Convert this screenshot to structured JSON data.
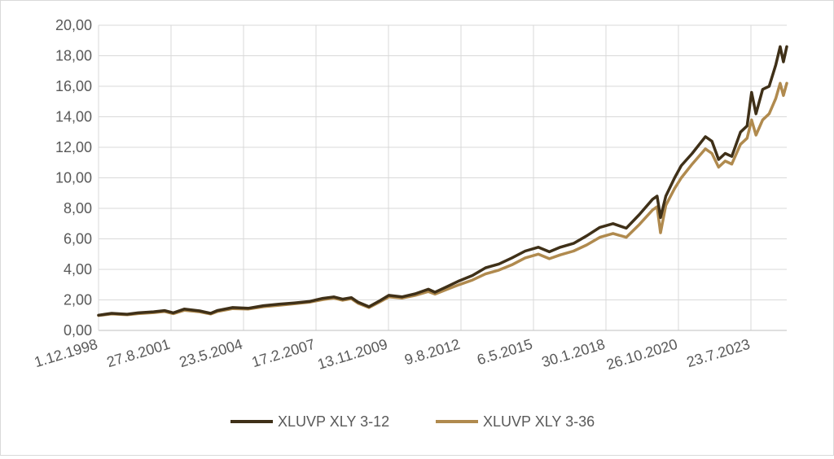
{
  "chart_data": {
    "type": "line",
    "title": "",
    "xlabel": "",
    "ylabel": "",
    "ylim": [
      0,
      20
    ],
    "y_ticks": [
      "0,00",
      "2,00",
      "4,00",
      "6,00",
      "8,00",
      "10,00",
      "12,00",
      "14,00",
      "16,00",
      "18,00",
      "20,00"
    ],
    "x_tick_labels": [
      "1.12.1998",
      "27.8.2001",
      "23.5.2004",
      "17.2.2007",
      "13.11.2009",
      "9.8.2012",
      "6.5.2015",
      "30.1.2018",
      "26.10.2020",
      "23.7.2023"
    ],
    "x_range": [
      "1998-12-01",
      "2024-12-31"
    ],
    "grid": "vertical and horizontal",
    "legend_position": "bottom",
    "series": [
      {
        "name": "XLUVP XLY 3-12",
        "color": "#3f3018",
        "points": [
          [
            "1998-12-01",
            1.0
          ],
          [
            "1999-06-01",
            1.12
          ],
          [
            "2000-01-01",
            1.06
          ],
          [
            "2000-06-01",
            1.15
          ],
          [
            "2001-01-01",
            1.22
          ],
          [
            "2001-06-01",
            1.3
          ],
          [
            "2001-10-01",
            1.15
          ],
          [
            "2002-03-01",
            1.4
          ],
          [
            "2002-10-01",
            1.28
          ],
          [
            "2003-03-01",
            1.12
          ],
          [
            "2003-06-01",
            1.3
          ],
          [
            "2004-01-01",
            1.5
          ],
          [
            "2004-08-01",
            1.45
          ],
          [
            "2005-03-01",
            1.62
          ],
          [
            "2005-10-01",
            1.72
          ],
          [
            "2006-05-01",
            1.8
          ],
          [
            "2006-12-01",
            1.9
          ],
          [
            "2007-06-01",
            2.1
          ],
          [
            "2007-11-01",
            2.2
          ],
          [
            "2008-03-01",
            2.05
          ],
          [
            "2008-07-01",
            2.15
          ],
          [
            "2008-10-01",
            1.85
          ],
          [
            "2009-03-01",
            1.55
          ],
          [
            "2009-08-01",
            1.95
          ],
          [
            "2009-12-01",
            2.3
          ],
          [
            "2010-06-01",
            2.2
          ],
          [
            "2010-12-01",
            2.4
          ],
          [
            "2011-06-01",
            2.7
          ],
          [
            "2011-09-01",
            2.5
          ],
          [
            "2012-03-01",
            2.9
          ],
          [
            "2012-08-01",
            3.25
          ],
          [
            "2013-02-01",
            3.6
          ],
          [
            "2013-08-01",
            4.1
          ],
          [
            "2014-02-01",
            4.35
          ],
          [
            "2014-08-01",
            4.75
          ],
          [
            "2015-02-01",
            5.2
          ],
          [
            "2015-08-01",
            5.45
          ],
          [
            "2016-01-01",
            5.15
          ],
          [
            "2016-06-01",
            5.45
          ],
          [
            "2016-12-01",
            5.7
          ],
          [
            "2017-06-01",
            6.2
          ],
          [
            "2017-12-01",
            6.75
          ],
          [
            "2018-06-01",
            7.0
          ],
          [
            "2018-12-01",
            6.7
          ],
          [
            "2019-06-01",
            7.6
          ],
          [
            "2019-12-01",
            8.6
          ],
          [
            "2020-02-01",
            8.8
          ],
          [
            "2020-03-20",
            7.4
          ],
          [
            "2020-06-01",
            8.8
          ],
          [
            "2020-10-01",
            10.0
          ],
          [
            "2021-01-01",
            10.8
          ],
          [
            "2021-06-01",
            11.6
          ],
          [
            "2021-12-01",
            12.7
          ],
          [
            "2022-03-01",
            12.4
          ],
          [
            "2022-06-01",
            11.2
          ],
          [
            "2022-09-01",
            11.6
          ],
          [
            "2022-12-01",
            11.4
          ],
          [
            "2023-04-01",
            13.0
          ],
          [
            "2023-07-01",
            13.4
          ],
          [
            "2023-09-01",
            15.6
          ],
          [
            "2023-11-01",
            14.2
          ],
          [
            "2024-02-01",
            15.8
          ],
          [
            "2024-05-01",
            16.0
          ],
          [
            "2024-08-01",
            17.4
          ],
          [
            "2024-10-01",
            18.6
          ],
          [
            "2024-11-15",
            17.6
          ],
          [
            "2024-12-31",
            18.6
          ]
        ]
      },
      {
        "name": "XLUVP XLY 3-36",
        "color": "#b08a4e",
        "points": [
          [
            "1998-12-01",
            0.98
          ],
          [
            "1999-06-01",
            1.08
          ],
          [
            "2000-01-01",
            1.03
          ],
          [
            "2000-06-01",
            1.1
          ],
          [
            "2001-01-01",
            1.17
          ],
          [
            "2001-06-01",
            1.24
          ],
          [
            "2001-10-01",
            1.1
          ],
          [
            "2002-03-01",
            1.32
          ],
          [
            "2002-10-01",
            1.22
          ],
          [
            "2003-03-01",
            1.08
          ],
          [
            "2003-06-01",
            1.24
          ],
          [
            "2004-01-01",
            1.43
          ],
          [
            "2004-08-01",
            1.4
          ],
          [
            "2005-03-01",
            1.55
          ],
          [
            "2005-10-01",
            1.65
          ],
          [
            "2006-05-01",
            1.75
          ],
          [
            "2006-12-01",
            1.85
          ],
          [
            "2007-06-01",
            2.02
          ],
          [
            "2007-11-01",
            2.12
          ],
          [
            "2008-03-01",
            1.98
          ],
          [
            "2008-07-01",
            2.08
          ],
          [
            "2008-10-01",
            1.78
          ],
          [
            "2009-03-01",
            1.5
          ],
          [
            "2009-08-01",
            1.88
          ],
          [
            "2009-12-01",
            2.2
          ],
          [
            "2010-06-01",
            2.12
          ],
          [
            "2010-12-01",
            2.3
          ],
          [
            "2011-06-01",
            2.55
          ],
          [
            "2011-09-01",
            2.38
          ],
          [
            "2012-03-01",
            2.72
          ],
          [
            "2012-08-01",
            3.0
          ],
          [
            "2013-02-01",
            3.3
          ],
          [
            "2013-08-01",
            3.7
          ],
          [
            "2014-02-01",
            3.95
          ],
          [
            "2014-08-01",
            4.3
          ],
          [
            "2015-02-01",
            4.75
          ],
          [
            "2015-08-01",
            5.0
          ],
          [
            "2016-01-01",
            4.7
          ],
          [
            "2016-06-01",
            4.95
          ],
          [
            "2016-12-01",
            5.2
          ],
          [
            "2017-06-01",
            5.6
          ],
          [
            "2017-12-01",
            6.1
          ],
          [
            "2018-06-01",
            6.35
          ],
          [
            "2018-12-01",
            6.1
          ],
          [
            "2019-06-01",
            6.95
          ],
          [
            "2019-12-01",
            7.9
          ],
          [
            "2020-02-01",
            8.1
          ],
          [
            "2020-03-20",
            6.4
          ],
          [
            "2020-06-01",
            8.2
          ],
          [
            "2020-10-01",
            9.3
          ],
          [
            "2021-01-01",
            10.0
          ],
          [
            "2021-06-01",
            10.9
          ],
          [
            "2021-12-01",
            11.9
          ],
          [
            "2022-03-01",
            11.6
          ],
          [
            "2022-06-01",
            10.7
          ],
          [
            "2022-09-01",
            11.1
          ],
          [
            "2022-12-01",
            10.9
          ],
          [
            "2023-04-01",
            12.2
          ],
          [
            "2023-07-01",
            12.6
          ],
          [
            "2023-09-01",
            13.8
          ],
          [
            "2023-11-01",
            12.8
          ],
          [
            "2024-02-01",
            13.8
          ],
          [
            "2024-05-01",
            14.2
          ],
          [
            "2024-08-01",
            15.2
          ],
          [
            "2024-10-01",
            16.2
          ],
          [
            "2024-11-15",
            15.4
          ],
          [
            "2024-12-31",
            16.2
          ]
        ]
      }
    ]
  }
}
